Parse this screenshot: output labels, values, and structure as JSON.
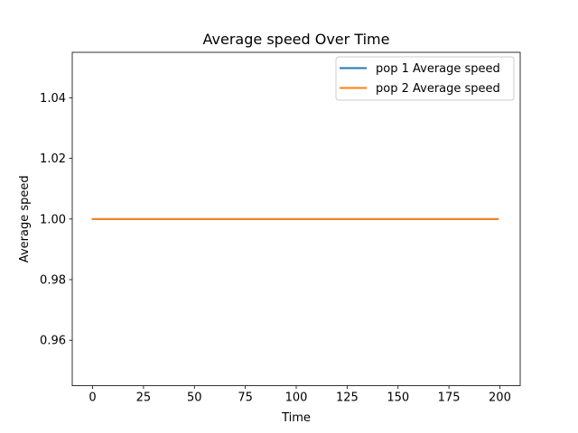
{
  "chart_data": {
    "type": "line",
    "title": "Average speed Over Time",
    "xlabel": "Time",
    "ylabel": "Average speed",
    "xlim": [
      -10,
      210
    ],
    "ylim": [
      0.945,
      1.055
    ],
    "xticks": [
      0,
      25,
      50,
      75,
      100,
      125,
      150,
      175,
      200
    ],
    "yticks": [
      0.96,
      0.98,
      1.0,
      1.02,
      1.04
    ],
    "xtick_labels": [
      "0",
      "25",
      "50",
      "75",
      "100",
      "125",
      "150",
      "175",
      "200"
    ],
    "ytick_labels": [
      "0.96",
      "0.98",
      "1.00",
      "1.02",
      "1.04"
    ],
    "grid": false,
    "legend_position": "top-right",
    "series": [
      {
        "name": "pop 1 Average speed",
        "color": "#1f77b4",
        "x": [
          0,
          199
        ],
        "y": [
          1.0,
          1.0
        ]
      },
      {
        "name": "pop 2 Average speed",
        "color": "#ff7f0e",
        "x": [
          0,
          199
        ],
        "y": [
          1.0,
          1.0
        ]
      }
    ]
  }
}
